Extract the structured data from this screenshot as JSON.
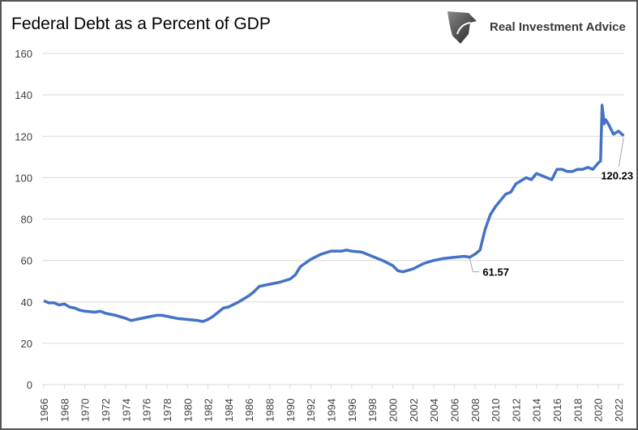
{
  "chart_data": {
    "type": "line",
    "title": "Federal Debt as a Percent of GDP",
    "xlabel": "",
    "ylabel": "",
    "ylim": [
      0,
      160
    ],
    "yticks": [
      0,
      20,
      40,
      60,
      80,
      100,
      120,
      140,
      160
    ],
    "xlim": [
      1966,
      2022.5
    ],
    "xticks": [
      1966,
      1968,
      1970,
      1972,
      1974,
      1976,
      1978,
      1980,
      1982,
      1984,
      1986,
      1988,
      1990,
      1992,
      1994,
      1996,
      1998,
      2000,
      2002,
      2004,
      2006,
      2008,
      2010,
      2012,
      2014,
      2016,
      2018,
      2020,
      2022
    ],
    "grid": "horizontal",
    "legend": "none",
    "line_color": "#4472C4",
    "series": [
      {
        "x": [
          1966,
          1966.5,
          1967,
          1967.5,
          1968,
          1968.5,
          1969,
          1969.5,
          1970,
          1971,
          1971.5,
          1972,
          1972.5,
          1973,
          1974,
          1974.5,
          1975,
          1976,
          1977,
          1977.5,
          1978,
          1979,
          1980,
          1981,
          1981.5,
          1982,
          1982.5,
          1983,
          1983.5,
          1984,
          1985,
          1986,
          1986.5,
          1987,
          1988,
          1989,
          1990,
          1990.5,
          1991,
          1992,
          1993,
          1994,
          1995,
          1995.5,
          1996,
          1997,
          1998,
          1999,
          2000,
          2000.5,
          2001,
          2002,
          2003,
          2004,
          2005,
          2006,
          2007,
          2007.5,
          2008,
          2008.5,
          2009,
          2009.5,
          2010,
          2011,
          2011.5,
          2012,
          2013,
          2013.5,
          2014,
          2014.5,
          2015,
          2015.5,
          2016,
          2016.5,
          2017,
          2017.5,
          2018,
          2018.5,
          2019,
          2019.5,
          2020,
          2020.25,
          2020.4,
          2020.6,
          2020.75,
          2021,
          2021.5,
          2022,
          2022.5
        ],
        "y": [
          40.5,
          39.5,
          39.5,
          38.5,
          39,
          37.5,
          37,
          36,
          35.5,
          35,
          35.5,
          34.5,
          34,
          33.5,
          32,
          31,
          31.5,
          32.5,
          33.5,
          33.5,
          33,
          32,
          31.5,
          31,
          30.5,
          31.5,
          33,
          35,
          37,
          37.5,
          40,
          43,
          45,
          47.5,
          48.5,
          49.5,
          51,
          53,
          57,
          60.5,
          63,
          64.5,
          64.5,
          65,
          64.5,
          64,
          62,
          60,
          57.5,
          55,
          54.5,
          56,
          58.5,
          60,
          61,
          61.5,
          62,
          61.57,
          63,
          65,
          75,
          82,
          86,
          92,
          93,
          97,
          100,
          99,
          102,
          101,
          100,
          99,
          104,
          104,
          103,
          103,
          104,
          104,
          105,
          104,
          107,
          108,
          135,
          126,
          128,
          126,
          121,
          122.5,
          120.23
        ]
      }
    ],
    "annotations": [
      {
        "x": 2007.5,
        "y": 61.57,
        "text": "61.57"
      },
      {
        "x": 2022.5,
        "y": 120.23,
        "text": "120.23"
      }
    ]
  },
  "logo": {
    "text": "Real Investment Advice"
  }
}
